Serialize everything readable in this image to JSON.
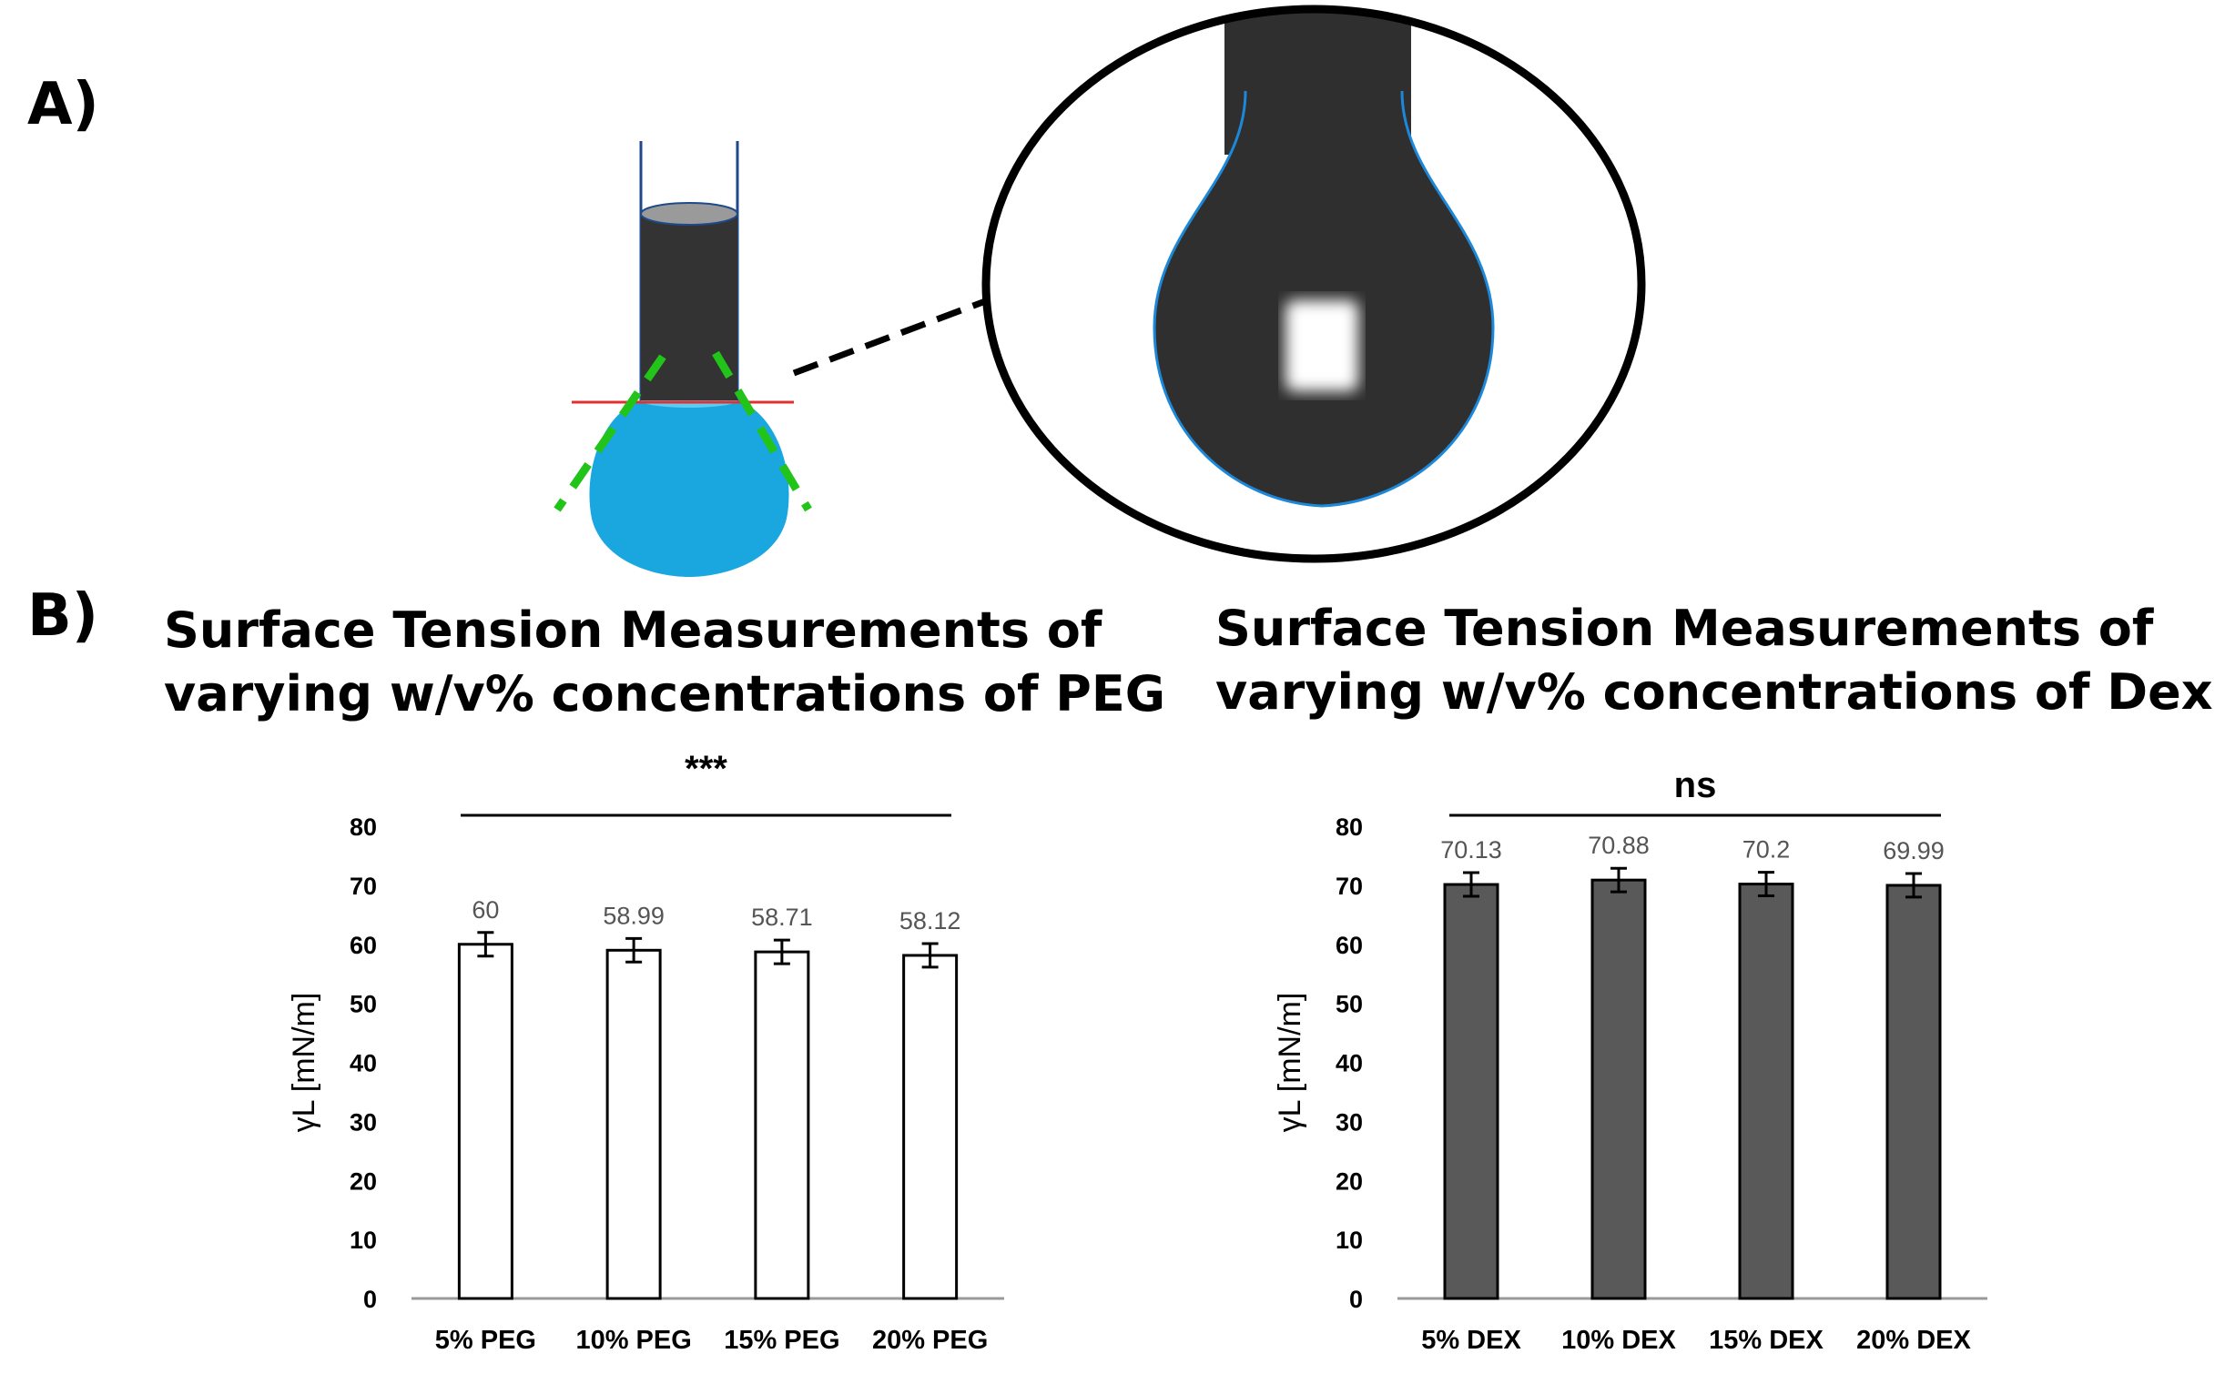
{
  "panel_labels": {
    "a": "A)",
    "b": "B)"
  },
  "colors": {
    "droplet": "#1aa7e0",
    "capillary": "#333333",
    "fit_line": "#22c41a",
    "baseline": "#e23030",
    "outline": "#1e88d8",
    "peg_bar_fill": "#ffffff",
    "dex_bar_fill": "#595959"
  },
  "chart_data": [
    {
      "type": "bar",
      "title": "Surface Tension Measurements of varying w/v% concentrations of PEG",
      "title_lines": [
        "Surface Tension Measurements of",
        "varying w/v% concentrations of PEG"
      ],
      "categories": [
        "5% PEG",
        "10% PEG",
        "15% PEG",
        "20% PEG"
      ],
      "values": [
        60,
        58.99,
        58.71,
        58.12
      ],
      "value_labels": [
        "60",
        "58.99",
        "58.71",
        "58.12"
      ],
      "error": [
        2,
        2,
        2,
        2
      ],
      "xlabel": "",
      "ylabel": "γL [mN/m]",
      "ylim": [
        0,
        80
      ],
      "yticks": [
        "0",
        "10",
        "20",
        "30",
        "40",
        "50",
        "60",
        "70",
        "80"
      ],
      "significance": "***",
      "grid": false
    },
    {
      "type": "bar",
      "title": "Surface Tension Measurements of varying w/v% concentrations of Dex",
      "title_lines": [
        "Surface Tension Measurements of",
        "varying w/v% concentrations of Dex"
      ],
      "categories": [
        "5% DEX",
        "10% DEX",
        "15% DEX",
        "20% DEX"
      ],
      "values": [
        70.13,
        70.88,
        70.2,
        69.99
      ],
      "value_labels": [
        "70.13",
        "70.88",
        "70.2",
        "69.99"
      ],
      "error": [
        2,
        2,
        2,
        2
      ],
      "xlabel": "",
      "ylabel": "γL [mN/m]",
      "ylim": [
        0,
        80
      ],
      "yticks": [
        "0",
        "10",
        "20",
        "30",
        "40",
        "50",
        "60",
        "70",
        "80"
      ],
      "significance": "ns",
      "grid": false
    }
  ]
}
